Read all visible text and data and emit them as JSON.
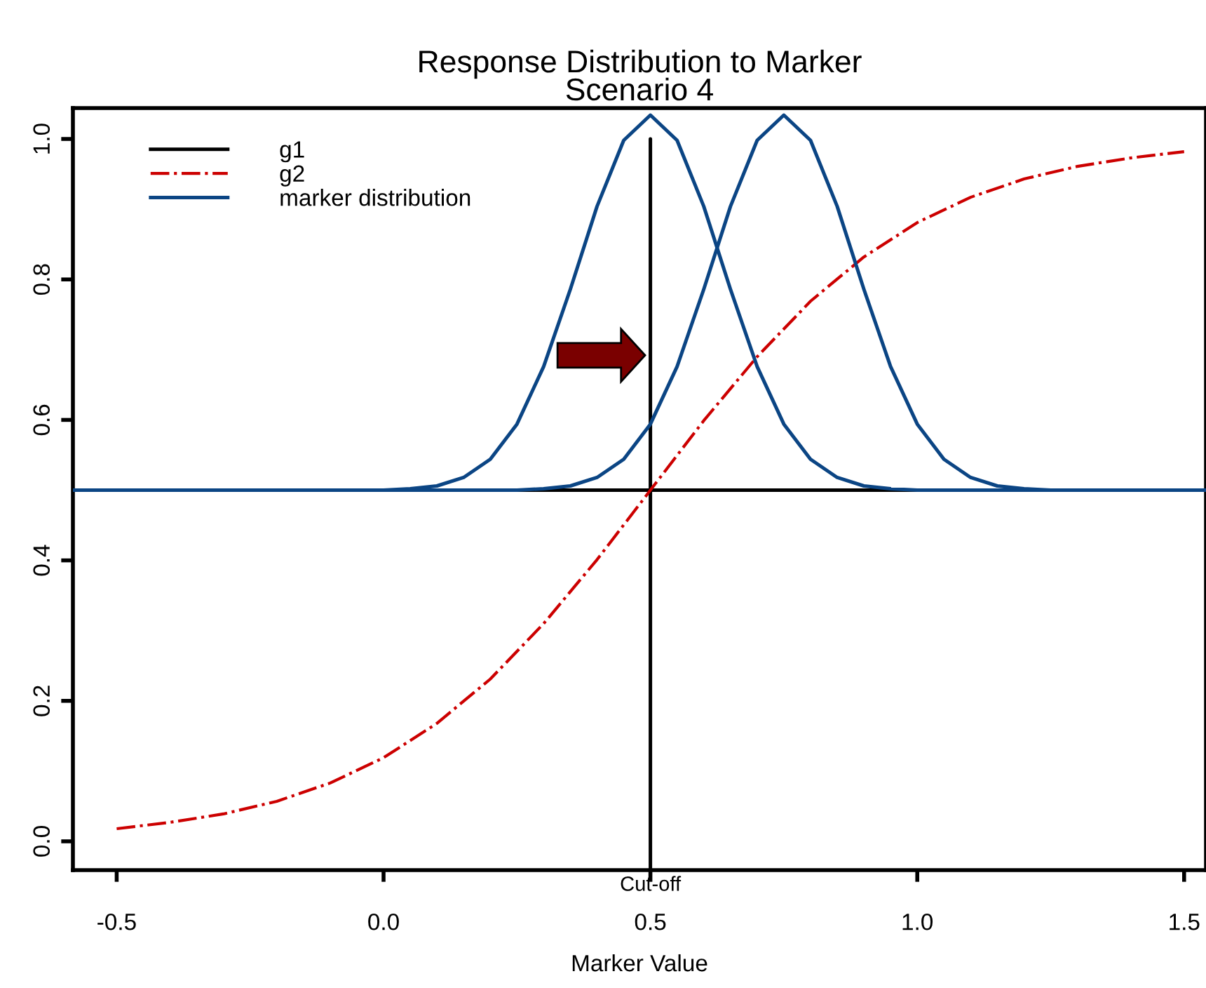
{
  "chart_data": {
    "type": "line",
    "title": "Response Distribution to Marker\nScenario 4",
    "xlabel": "Marker Value",
    "xlim": [
      -0.582,
      1.541
    ],
    "xticks": [
      -0.5,
      {
        "value": 0.0,
        "label": "0.0"
      },
      0.5,
      {
        "value": 1.0,
        "label": "1.0"
      },
      1.5
    ],
    "ylim": [
      -0.041,
      1.044
    ],
    "yticks": [
      {
        "value": 0.0,
        "label": "0.0"
      },
      0.2,
      0.4,
      0.6,
      0.8,
      {
        "value": 1.0,
        "label": "1.0"
      }
    ],
    "grid": false,
    "legend": "top left",
    "annotations": [
      {
        "text": "Cut-off",
        "x": 0.5,
        "y": -0.041
      }
    ],
    "series": [
      {
        "name": "g1",
        "color": "#000000",
        "line_style": "solid",
        "x": [
          0.5,
          0.5,
          0.5,
          -0.582,
          1.541
        ],
        "values": [
          -0.041,
          1.0,
          0.5,
          0.5,
          0.5
        ]
      },
      {
        "name": "g2",
        "color": "#cc0000",
        "line_style": "dashdot",
        "x": [
          -0.5,
          -0.4,
          -0.3,
          -0.2,
          -0.1,
          0.0,
          0.1,
          0.2,
          0.3,
          0.4,
          0.5,
          0.6,
          0.7,
          0.8,
          0.9,
          1.0,
          1.1,
          1.2,
          1.3,
          1.4,
          1.5
        ],
        "values": [
          0.018,
          0.027,
          0.039,
          0.057,
          0.083,
          0.119,
          0.168,
          0.231,
          0.31,
          0.401,
          0.5,
          0.599,
          0.69,
          0.769,
          0.832,
          0.881,
          0.917,
          0.943,
          0.961,
          0.973,
          0.982
        ]
      },
      {
        "name": "marker distribution",
        "color": "#0b4584",
        "line_style": "solid",
        "x": [
          -0.582,
          0.0,
          0.05,
          0.1,
          0.15,
          0.2,
          0.25,
          0.3,
          0.35,
          0.4,
          0.45,
          0.5,
          0.55,
          0.6,
          0.65,
          0.7,
          0.75,
          0.8,
          0.85,
          0.9,
          0.95,
          1.0,
          1.541
        ],
        "values": [
          0.5,
          0.5,
          0.502,
          0.506,
          0.518,
          0.544,
          0.594,
          0.676,
          0.786,
          0.904,
          0.998,
          1.034,
          0.998,
          0.904,
          0.786,
          0.676,
          0.594,
          0.544,
          0.518,
          0.506,
          0.502,
          0.5,
          0.5
        ]
      },
      {
        "color": "#0b4584",
        "line_style": "solid",
        "x": [
          -0.582,
          0.25,
          0.3,
          0.35,
          0.4,
          0.45,
          0.5,
          0.55,
          0.6,
          0.65,
          0.7,
          0.75,
          0.8,
          0.85,
          0.9,
          0.95,
          1.0,
          1.05,
          1.1,
          1.15,
          1.2,
          1.25,
          1.541
        ],
        "values": [
          0.5,
          0.5,
          0.502,
          0.506,
          0.518,
          0.544,
          0.594,
          0.676,
          0.786,
          0.904,
          0.998,
          1.034,
          0.998,
          0.904,
          0.786,
          0.676,
          0.594,
          0.544,
          0.518,
          0.506,
          0.502,
          0.5,
          0.5
        ]
      }
    ]
  }
}
